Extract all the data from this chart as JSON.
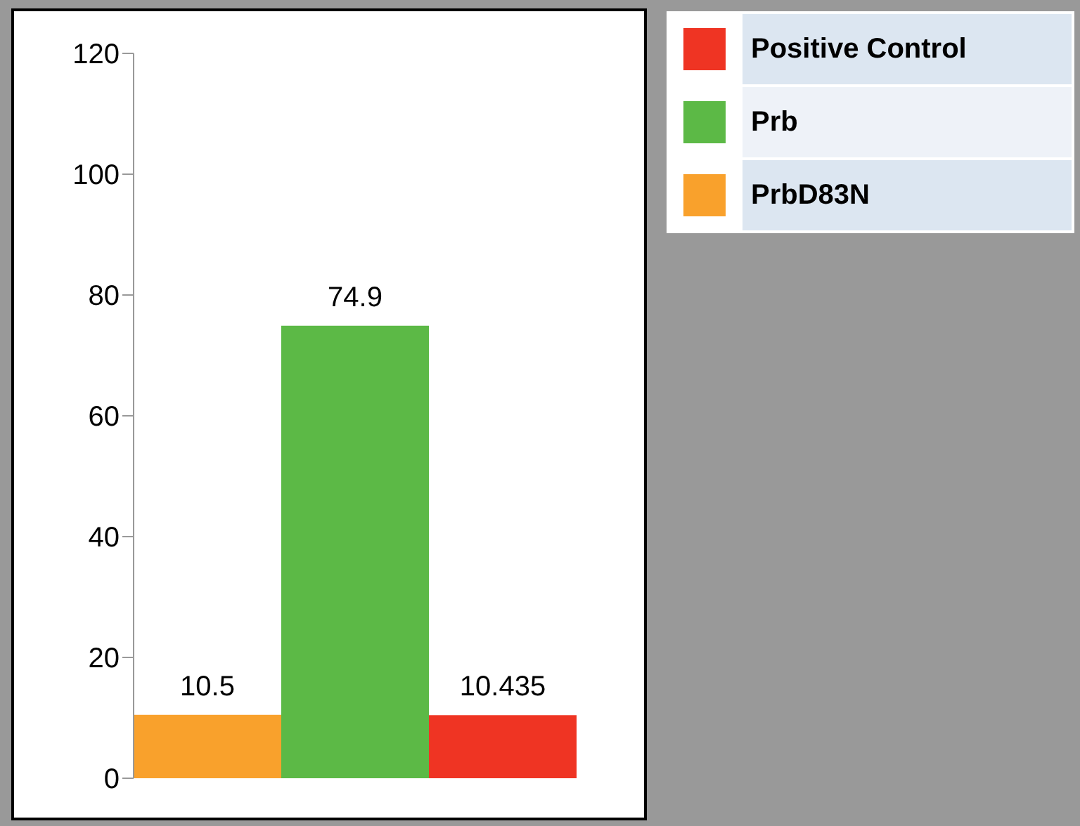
{
  "chart_data": {
    "type": "bar",
    "categories": [
      null,
      null,
      null
    ],
    "stacked": true,
    "series": [
      {
        "name": "Positive Control",
        "color": "#ef3423",
        "values": [
          null,
          null,
          10.435
        ]
      },
      {
        "name": "Prb",
        "color": "#5cb946",
        "values": [
          null,
          74.9,
          null
        ]
      },
      {
        "name": "PrbD83N",
        "color": "#f9a12c",
        "values": [
          10.5,
          null,
          null
        ]
      }
    ],
    "ylim": [
      0,
      120
    ],
    "yticks": [
      0,
      20,
      40,
      60,
      80,
      100,
      120
    ],
    "data_labels": true,
    "grid": false,
    "legend": "top right"
  }
}
